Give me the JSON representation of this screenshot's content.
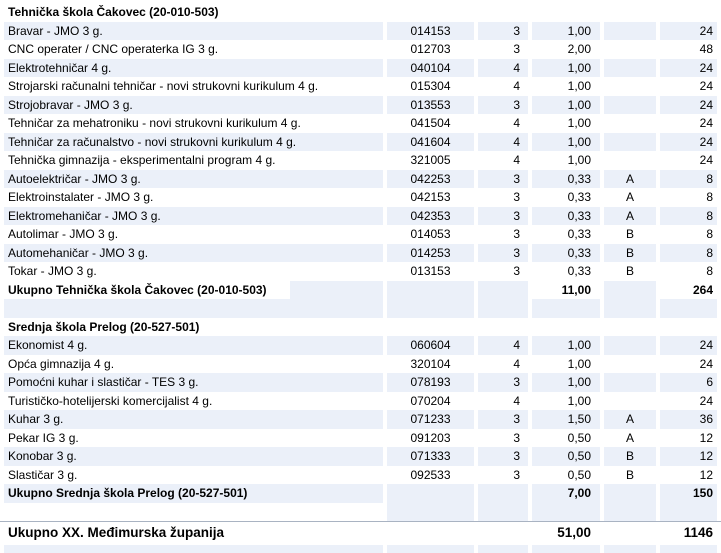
{
  "document": {
    "columns": [
      "program",
      "code",
      "duration_years",
      "classes",
      "group",
      "students"
    ],
    "sections": [
      {
        "title": "Tehnička škola Čakovec (20-010-503)",
        "rows": [
          [
            "Bravar - JMO 3 g.",
            "014153",
            "3",
            "1,00",
            "",
            "24"
          ],
          [
            "CNC operater / CNC operaterka IG 3 g.",
            "012703",
            "3",
            "2,00",
            "",
            "48"
          ],
          [
            "Elektrotehničar 4 g.",
            "040104",
            "4",
            "1,00",
            "",
            "24"
          ],
          [
            "Strojarski računalni tehničar - novi strukovni kurikulum 4 g.",
            "015304",
            "4",
            "1,00",
            "",
            "24"
          ],
          [
            "Strojobravar - JMO 3 g.",
            "013553",
            "3",
            "1,00",
            "",
            "24"
          ],
          [
            "Tehničar za mehatroniku - novi strukovni kurikulum 4 g.",
            "041504",
            "4",
            "1,00",
            "",
            "24"
          ],
          [
            "Tehničar za računalstvo - novi strukovni kurikulum 4 g.",
            "041604",
            "4",
            "1,00",
            "",
            "24"
          ],
          [
            "Tehnička gimnazija - eksperimentalni program 4 g.",
            "321005",
            "4",
            "1,00",
            "",
            "24"
          ],
          [
            "Autoelektričar - JMO 3 g.",
            "042253",
            "3",
            "0,33",
            "A",
            "8"
          ],
          [
            "Elektroinstalater - JMO 3 g.",
            "042153",
            "3",
            "0,33",
            "A",
            "8"
          ],
          [
            "Elektromehaničar - JMO 3 g.",
            "042353",
            "3",
            "0,33",
            "A",
            "8"
          ],
          [
            "Autolimar - JMO 3 g.",
            "014053",
            "3",
            "0,33",
            "B",
            "8"
          ],
          [
            "Automehaničar - JMO 3 g.",
            "014253",
            "3",
            "0,33",
            "B",
            "8"
          ],
          [
            "Tokar - JMO 3 g.",
            "013153",
            "3",
            "0,33",
            "B",
            "8"
          ]
        ],
        "total": {
          "label": "Ukupno Tehnička škola Čakovec (20-010-503)",
          "classes": "11,00",
          "students": "264"
        }
      },
      {
        "title": "Srednja škola Prelog (20-527-501)",
        "rows": [
          [
            "Ekonomist 4 g.",
            "060604",
            "4",
            "1,00",
            "",
            "24"
          ],
          [
            "Opća gimnazija 4 g.",
            "320104",
            "4",
            "1,00",
            "",
            "24"
          ],
          [
            "Pomoćni kuhar i slastičar - TES 3 g.",
            "078193",
            "3",
            "1,00",
            "",
            "6"
          ],
          [
            "Turističko-hotelijerski komercijalist 4 g.",
            "070204",
            "4",
            "1,00",
            "",
            "24"
          ],
          [
            "Kuhar 3 g.",
            "071233",
            "3",
            "1,50",
            "A",
            "36"
          ],
          [
            "Pekar IG 3 g.",
            "091203",
            "3",
            "0,50",
            "A",
            "12"
          ],
          [
            "Konobar 3 g.",
            "071333",
            "3",
            "0,50",
            "B",
            "12"
          ],
          [
            "Slastičar 3 g.",
            "092533",
            "3",
            "0,50",
            "B",
            "12"
          ]
        ],
        "total": {
          "label": "Ukupno Srednja škola Prelog (20-527-501)",
          "classes": "7,00",
          "students": "150"
        }
      }
    ],
    "grand_total": {
      "label": "Ukupno XX. Međimurska županija",
      "classes": "51,00",
      "students": "1146"
    },
    "colors": {
      "row_shade": "#EBF0F9",
      "text": "#000000",
      "grand_total_divider": "#A9B3C2"
    }
  }
}
